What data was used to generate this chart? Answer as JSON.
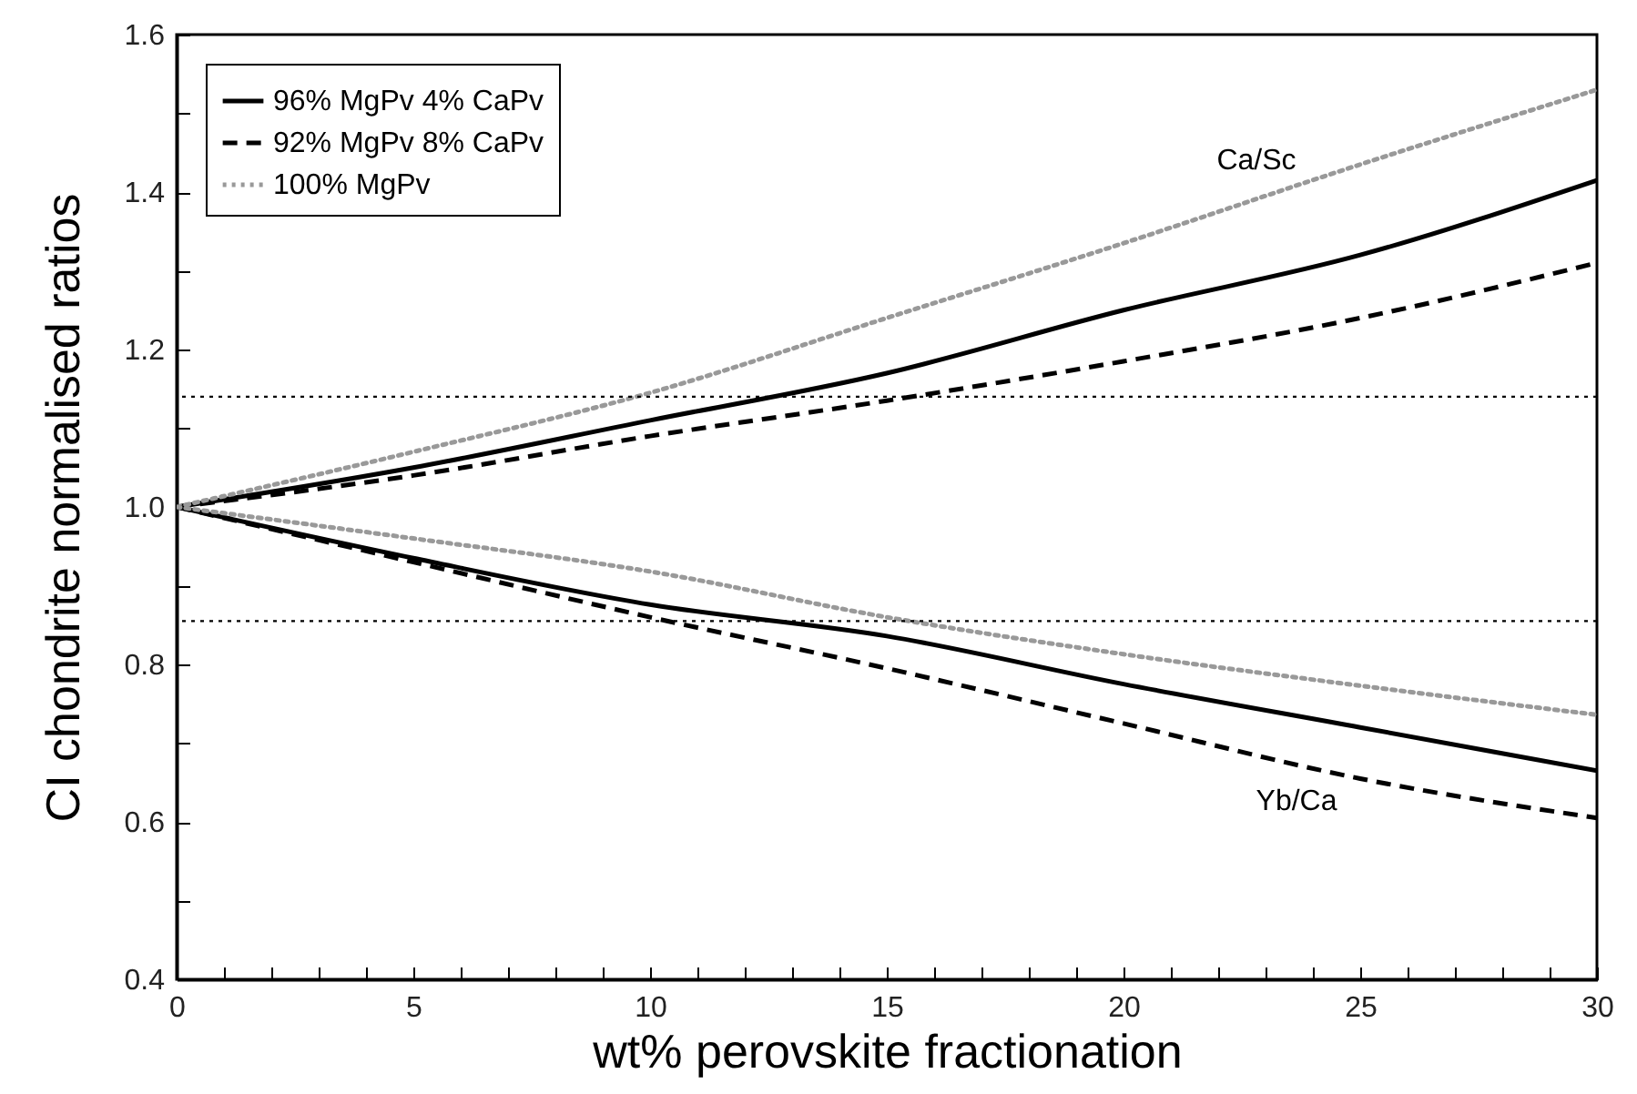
{
  "chart_data": {
    "type": "line",
    "xlabel": "wt% perovskite fractionation",
    "ylabel": "CI chondrite normalised ratios",
    "x": [
      0,
      5,
      10,
      15,
      20,
      25,
      30
    ],
    "series": [
      {
        "name": "96% MgPv 4% CaPv",
        "color": "#000000",
        "line_style": "solid",
        "values": [
          1.0,
          1.05,
          1.11,
          1.17,
          1.25,
          1.32,
          1.415
        ]
      },
      {
        "name": "92% MgPv 8% CaPv",
        "color": "#000000",
        "line_style": "dashed",
        "values": [
          1.0,
          1.04,
          1.09,
          1.135,
          1.185,
          1.24,
          1.31
        ]
      },
      {
        "name": "100% MgPv",
        "color": "#999999",
        "line_style": "dotted",
        "values": [
          1.0,
          1.07,
          1.145,
          1.24,
          1.335,
          1.435,
          1.53
        ]
      },
      {
        "color": "#000000",
        "line_style": "solid",
        "values": [
          1.0,
          0.935,
          0.876,
          0.836,
          0.775,
          0.72,
          0.665
        ]
      },
      {
        "color": "#000000",
        "line_style": "dashed",
        "values": [
          1.0,
          0.93,
          0.86,
          0.795,
          0.725,
          0.655,
          0.605
        ]
      },
      {
        "color": "#999999",
        "line_style": "dotted",
        "values": [
          1.0,
          0.96,
          0.918,
          0.86,
          0.813,
          0.773,
          0.736
        ]
      }
    ],
    "xlim": [
      0,
      30
    ],
    "xticks": [
      0,
      {
        "value": 1,
        "label": null
      },
      {
        "value": 2,
        "label": null
      },
      {
        "value": 3,
        "label": null
      },
      {
        "value": 4,
        "label": null
      },
      5,
      {
        "value": 6,
        "label": null
      },
      {
        "value": 7,
        "label": null
      },
      {
        "value": 8,
        "label": null
      },
      {
        "value": 9,
        "label": null
      },
      10,
      {
        "value": 11,
        "label": null
      },
      {
        "value": 12,
        "label": null
      },
      {
        "value": 13,
        "label": null
      },
      {
        "value": 14,
        "label": null
      },
      15,
      {
        "value": 16,
        "label": null
      },
      {
        "value": 17,
        "label": null
      },
      {
        "value": 18,
        "label": null
      },
      {
        "value": 19,
        "label": null
      },
      20,
      {
        "value": 21,
        "label": null
      },
      {
        "value": 22,
        "label": null
      },
      {
        "value": 23,
        "label": null
      },
      {
        "value": 24,
        "label": null
      },
      25,
      {
        "value": 26,
        "label": null
      },
      {
        "value": 27,
        "label": null
      },
      {
        "value": 28,
        "label": null
      },
      {
        "value": 29,
        "label": null
      },
      30
    ],
    "ylim": [
      0.4,
      1.6
    ],
    "yticks": [
      {
        "value": 0.4,
        "label": "0.4"
      },
      {
        "value": 0.5,
        "label": null
      },
      {
        "value": 0.6,
        "label": "0.6"
      },
      {
        "value": 0.7,
        "label": null
      },
      {
        "value": 0.8,
        "label": "0.8"
      },
      {
        "value": 0.9,
        "label": null
      },
      {
        "value": 1.0,
        "label": "1.0"
      },
      {
        "value": 1.1,
        "label": null
      },
      {
        "value": 1.2,
        "label": "1.2"
      },
      {
        "value": 1.3,
        "label": null
      },
      {
        "value": 1.4,
        "label": "1.4"
      },
      {
        "value": 1.5,
        "label": null
      },
      {
        "value": 1.6,
        "label": "1.6"
      }
    ],
    "ref_lines": [
      {
        "axis": "y",
        "value": 1.14,
        "color": "#000000",
        "line_style": "dotted"
      },
      {
        "axis": "y",
        "value": 0.855,
        "color": "#000000",
        "line_style": "dotted"
      }
    ],
    "annotations": [
      "Ca/Sc",
      "Yb/Ca"
    ],
    "legend": "top left",
    "grid": false
  }
}
